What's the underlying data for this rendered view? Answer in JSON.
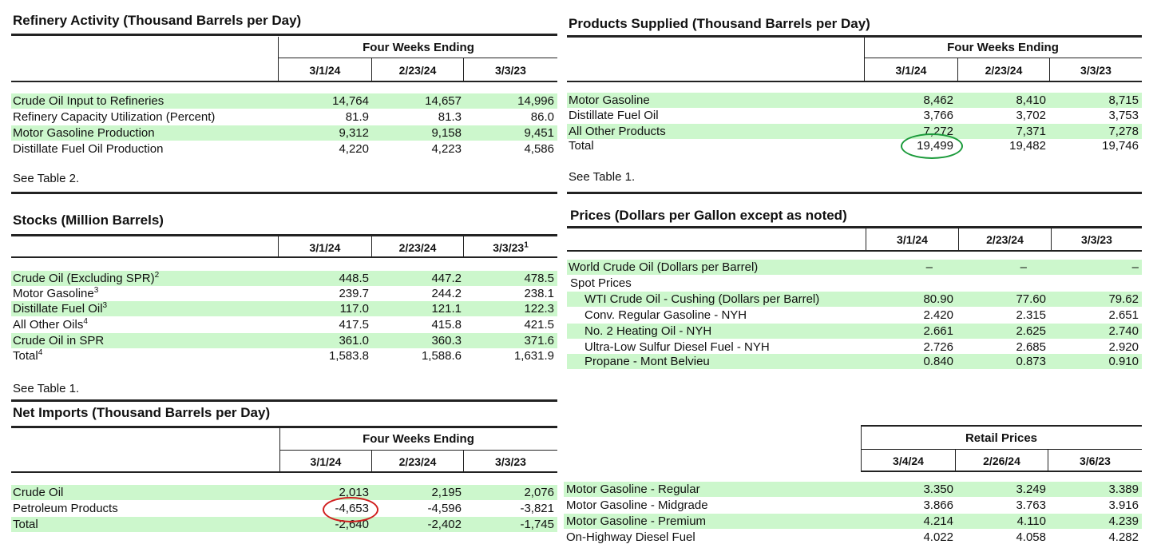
{
  "refinery": {
    "title": "Refinery Activity (Thousand Barrels per Day)",
    "group": "Four Weeks Ending",
    "cols": [
      "3/1/24",
      "2/23/24",
      "3/3/23"
    ],
    "rows": [
      {
        "label": "Crude Oil Input to Refineries",
        "v": [
          "14,764",
          "14,657",
          "14,996"
        ]
      },
      {
        "label": "Refinery Capacity Utilization (Percent)",
        "v": [
          "81.9",
          "81.3",
          "86.0"
        ]
      },
      {
        "label": "Motor Gasoline Production",
        "v": [
          "9,312",
          "9,158",
          "9,451"
        ]
      },
      {
        "label": "Distillate Fuel Oil Production",
        "v": [
          "4,220",
          "4,223",
          "4,586"
        ]
      }
    ],
    "note": "See Table 2."
  },
  "stocks": {
    "title": "Stocks (Million Barrels)",
    "cols": [
      "3/1/24",
      "2/23/24",
      "3/3/23"
    ],
    "col3_sup": "1",
    "rows": [
      {
        "label": "Crude Oil (Excluding SPR)",
        "sup": "2",
        "v": [
          "448.5",
          "447.2",
          "478.5"
        ]
      },
      {
        "label": "Motor Gasoline",
        "sup": "3",
        "v": [
          "239.7",
          "244.2",
          "238.1"
        ]
      },
      {
        "label": "Distillate Fuel Oil",
        "sup": "3",
        "v": [
          "117.0",
          "121.1",
          "122.3"
        ]
      },
      {
        "label": "All Other Oils",
        "sup": "4",
        "v": [
          "417.5",
          "415.8",
          "421.5"
        ]
      },
      {
        "label": "Crude Oil in SPR",
        "sup": "",
        "v": [
          "361.0",
          "360.3",
          "371.6"
        ]
      },
      {
        "label": "Total",
        "sup": "4",
        "v": [
          "1,583.8",
          "1,588.6",
          "1,631.9"
        ]
      }
    ],
    "note": "See Table 1."
  },
  "imports": {
    "title": "Net Imports (Thousand Barrels per Day)",
    "group": "Four Weeks Ending",
    "cols": [
      "3/1/24",
      "2/23/24",
      "3/3/23"
    ],
    "rows": [
      {
        "label": "Crude Oil",
        "v": [
          "2,013",
          "2,195",
          "2,076"
        ]
      },
      {
        "label": "Petroleum Products",
        "v": [
          "-4,653",
          "-4,596",
          "-3,821"
        ]
      },
      {
        "label": "Total",
        "v": [
          "-2,640",
          "-2,402",
          "-1,745"
        ]
      }
    ]
  },
  "products": {
    "title": "Products Supplied (Thousand Barrels per Day)",
    "group": "Four Weeks Ending",
    "cols": [
      "3/1/24",
      "2/23/24",
      "3/3/23"
    ],
    "rows": [
      {
        "label": "Motor Gasoline",
        "v": [
          "8,462",
          "8,410",
          "8,715"
        ]
      },
      {
        "label": "Distillate Fuel Oil",
        "v": [
          "3,766",
          "3,702",
          "3,753"
        ]
      },
      {
        "label": "All Other Products",
        "v": [
          "7,272",
          "7,371",
          "7,278"
        ]
      },
      {
        "label": "Total",
        "v": [
          "19,499",
          "19,482",
          "19,746"
        ]
      }
    ],
    "note": "See Table 1."
  },
  "prices": {
    "title": "Prices (Dollars per Gallon except as noted)",
    "cols": [
      "3/1/24",
      "2/23/24",
      "3/3/23"
    ],
    "rows": [
      {
        "label": "World Crude Oil (Dollars per Barrel)",
        "v": [
          "–",
          "–",
          "–"
        ]
      },
      {
        "label": "Spot Prices",
        "v": [
          "",
          "",
          ""
        ]
      },
      {
        "label": "WTI Crude Oil - Cushing  (Dollars per Barrel)",
        "v": [
          "80.90",
          "77.60",
          "79.62"
        ]
      },
      {
        "label": "Conv. Regular Gasoline - NYH",
        "v": [
          "2.420",
          "2.315",
          "2.651"
        ]
      },
      {
        "label": "No. 2 Heating Oil - NYH",
        "v": [
          "2.661",
          "2.625",
          "2.740"
        ]
      },
      {
        "label": "Ultra-Low Sulfur Diesel Fuel - NYH",
        "v": [
          "2.726",
          "2.685",
          "2.920"
        ]
      },
      {
        "label": "Propane - Mont Belvieu",
        "v": [
          "0.840",
          "0.873",
          "0.910"
        ]
      }
    ]
  },
  "retail": {
    "group": "Retail Prices",
    "cols": [
      "3/4/24",
      "2/26/24",
      "3/6/23"
    ],
    "rows": [
      {
        "label": "Motor Gasoline - Regular",
        "v": [
          "3.350",
          "3.249",
          "3.389"
        ]
      },
      {
        "label": "Motor Gasoline - Midgrade",
        "v": [
          "3.866",
          "3.763",
          "3.916"
        ]
      },
      {
        "label": "Motor Gasoline - Premium",
        "v": [
          "4.214",
          "4.110",
          "4.239"
        ]
      },
      {
        "label": "On-Highway Diesel Fuel",
        "v": [
          "4.022",
          "4.058",
          "4.282"
        ]
      }
    ]
  },
  "colors": {
    "row_shade": "#ccf7cc",
    "circle_green": "#1a9a3a",
    "circle_red": "#d11f1f"
  }
}
